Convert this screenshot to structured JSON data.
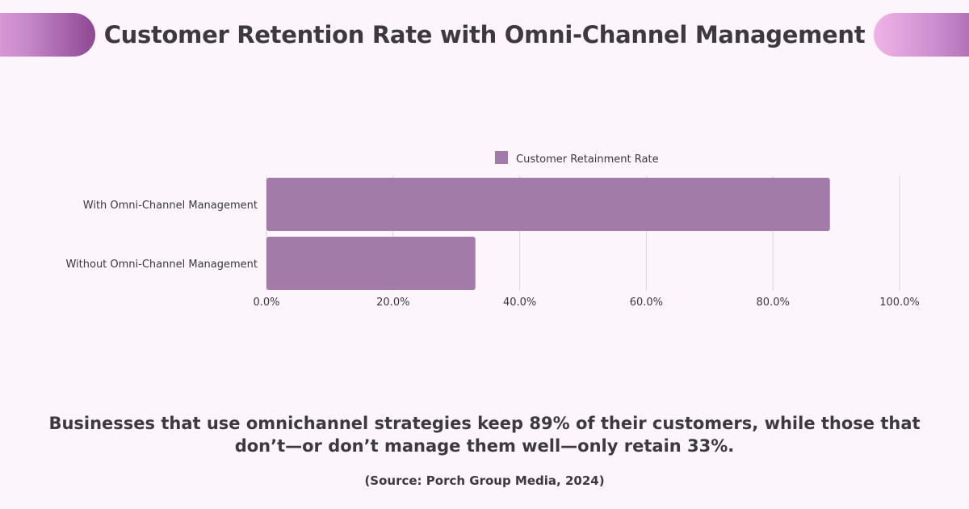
{
  "header": {
    "title": "Customer Retention Rate with Omni-Channel Management"
  },
  "chart_data": {
    "type": "bar",
    "orientation": "horizontal",
    "categories": [
      "With Omni-Channel Management",
      "Without Omni-Channel Management"
    ],
    "series": [
      {
        "name": "Customer Retainment Rate",
        "values": [
          89,
          33
        ],
        "color": "#a37ba8"
      }
    ],
    "xlim": [
      0,
      100
    ],
    "xticks": [
      "0.0%",
      "20.0%",
      "40.0%",
      "60.0%",
      "80.0%",
      "100.0%"
    ],
    "grid": true,
    "legend": "top-center"
  },
  "footer": {
    "summary": "Businesses that use omnichannel strategies keep 89% of their customers, while those that don’t—or don’t manage them well—only retain 33%.",
    "source": "(Source: Porch Group Media, 2024)"
  }
}
